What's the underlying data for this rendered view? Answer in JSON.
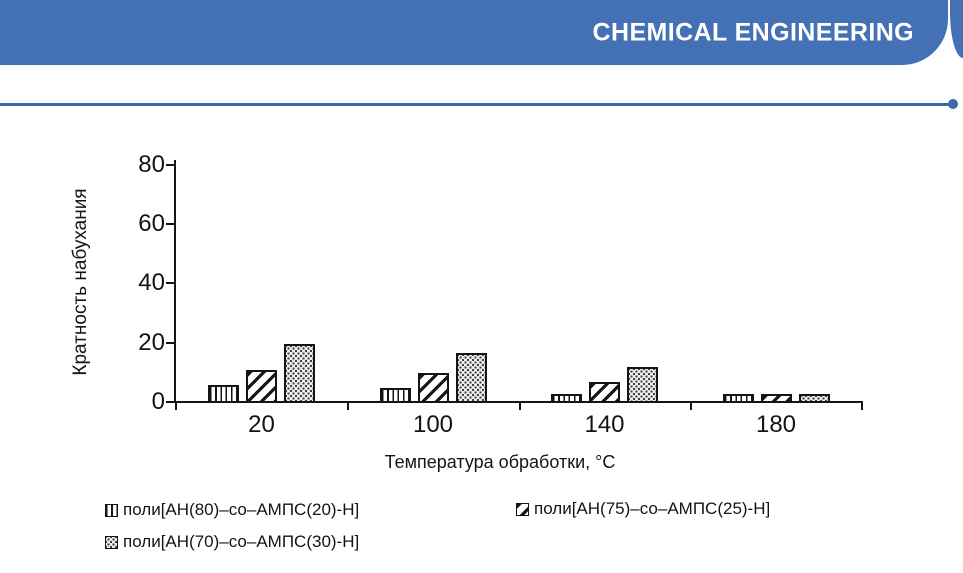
{
  "header": {
    "title": "CHEMICAL ENGINEERING",
    "banner_color": "#4471b5",
    "divider_color": "#3c68ac"
  },
  "chart_data": {
    "type": "bar",
    "title": "",
    "categories": [
      "20",
      "100",
      "140",
      "180"
    ],
    "series": [
      {
        "name": "поли[АН(80)–со–АМПС(20)-Н]",
        "pattern": "vertical-lines",
        "values": [
          6,
          5,
          3,
          3
        ]
      },
      {
        "name": "поли[АН(75)–со–АМПС(25)-Н]",
        "pattern": "diagonal-stripes",
        "values": [
          11,
          10,
          7,
          3
        ]
      },
      {
        "name": "поли[АН(70)–со–АМПС(30)-Н]",
        "pattern": "dotted-grid",
        "values": [
          20,
          17,
          12,
          3
        ]
      }
    ],
    "xlabel": "Температура обработки, °С",
    "ylabel": "Кратность набухания",
    "ylim": [
      0,
      80
    ],
    "yticks": [
      0,
      20,
      40,
      60,
      80
    ],
    "grid": false,
    "legend_position": "bottom",
    "bar_outline_color": "#141414"
  }
}
